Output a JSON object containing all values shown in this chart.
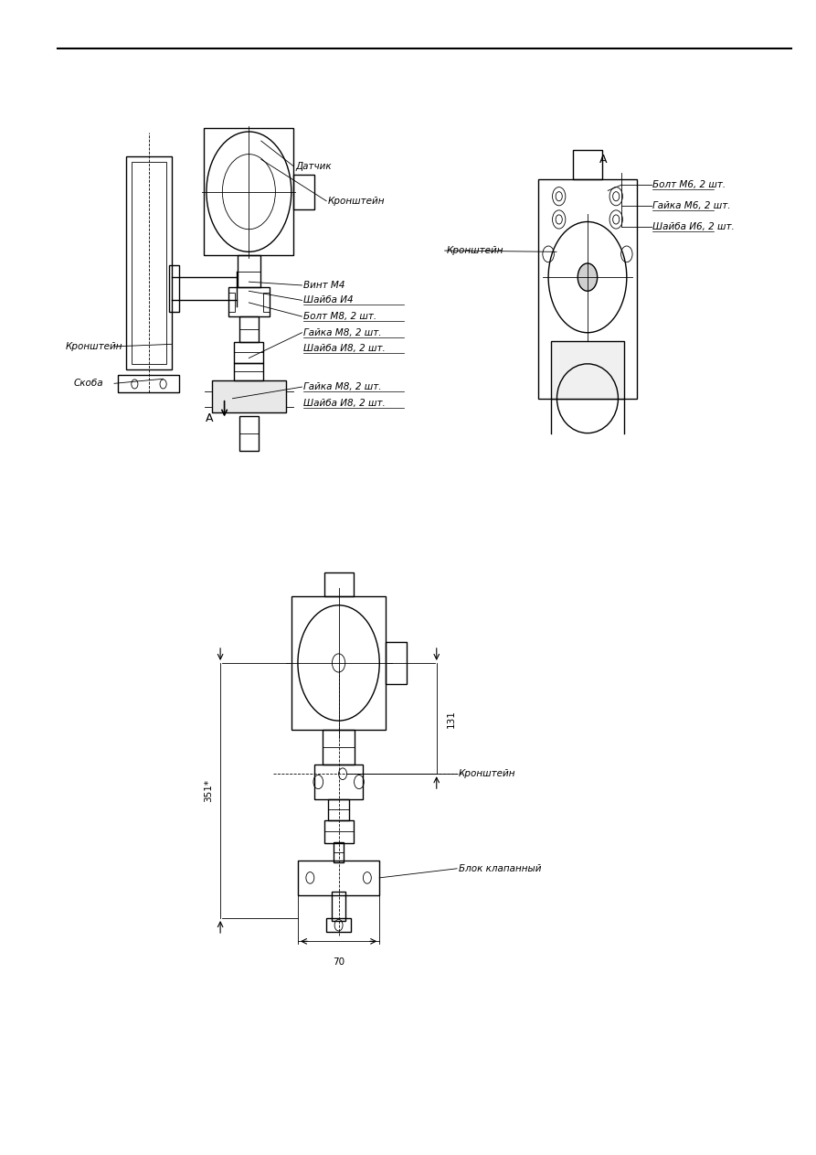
{
  "bg_color": "#ffffff",
  "line_color": "#000000",
  "text_color": "#000000",
  "fig_width": 8.93,
  "fig_height": 12.63,
  "top_diagram": {
    "label_datchik": {
      "text": "Датчик"
    },
    "label_kronstein1": {
      "text": "Кронштейн"
    },
    "label_kronstein2": {
      "text": "Кронштейн"
    },
    "label_skoba": {
      "text": "Скоба"
    },
    "label_vint": {
      "text": "Винт М4"
    },
    "label_shayba_c4": {
      "text": "Шайба И4"
    },
    "label_bolt_m8": {
      "text": "Болт М8, 2 шт."
    },
    "label_gayka_m8_1": {
      "text": "Гайка М8, 2 шт."
    },
    "label_shayba_c8_1": {
      "text": "Шайба И8, 2 шт."
    },
    "label_gayka_m8_2": {
      "text": "Гайка М8, 2 шт."
    },
    "label_shayba_c8_2": {
      "text": "Шайба И8, 2 шт."
    },
    "label_kronstein_right": {
      "text": "Кронштейн"
    },
    "label_bolt_m6": {
      "text": "Болт М6, 2 шт."
    },
    "label_gayka_m6": {
      "text": "Гайка М6, 2 шт."
    },
    "label_shayba_c6": {
      "text": "Шайба И6, 2 шт."
    }
  },
  "bottom_diagram": {
    "label_kronstein": {
      "text": "Кронштейн"
    },
    "label_blok": {
      "text": "Блок клапанный"
    }
  }
}
